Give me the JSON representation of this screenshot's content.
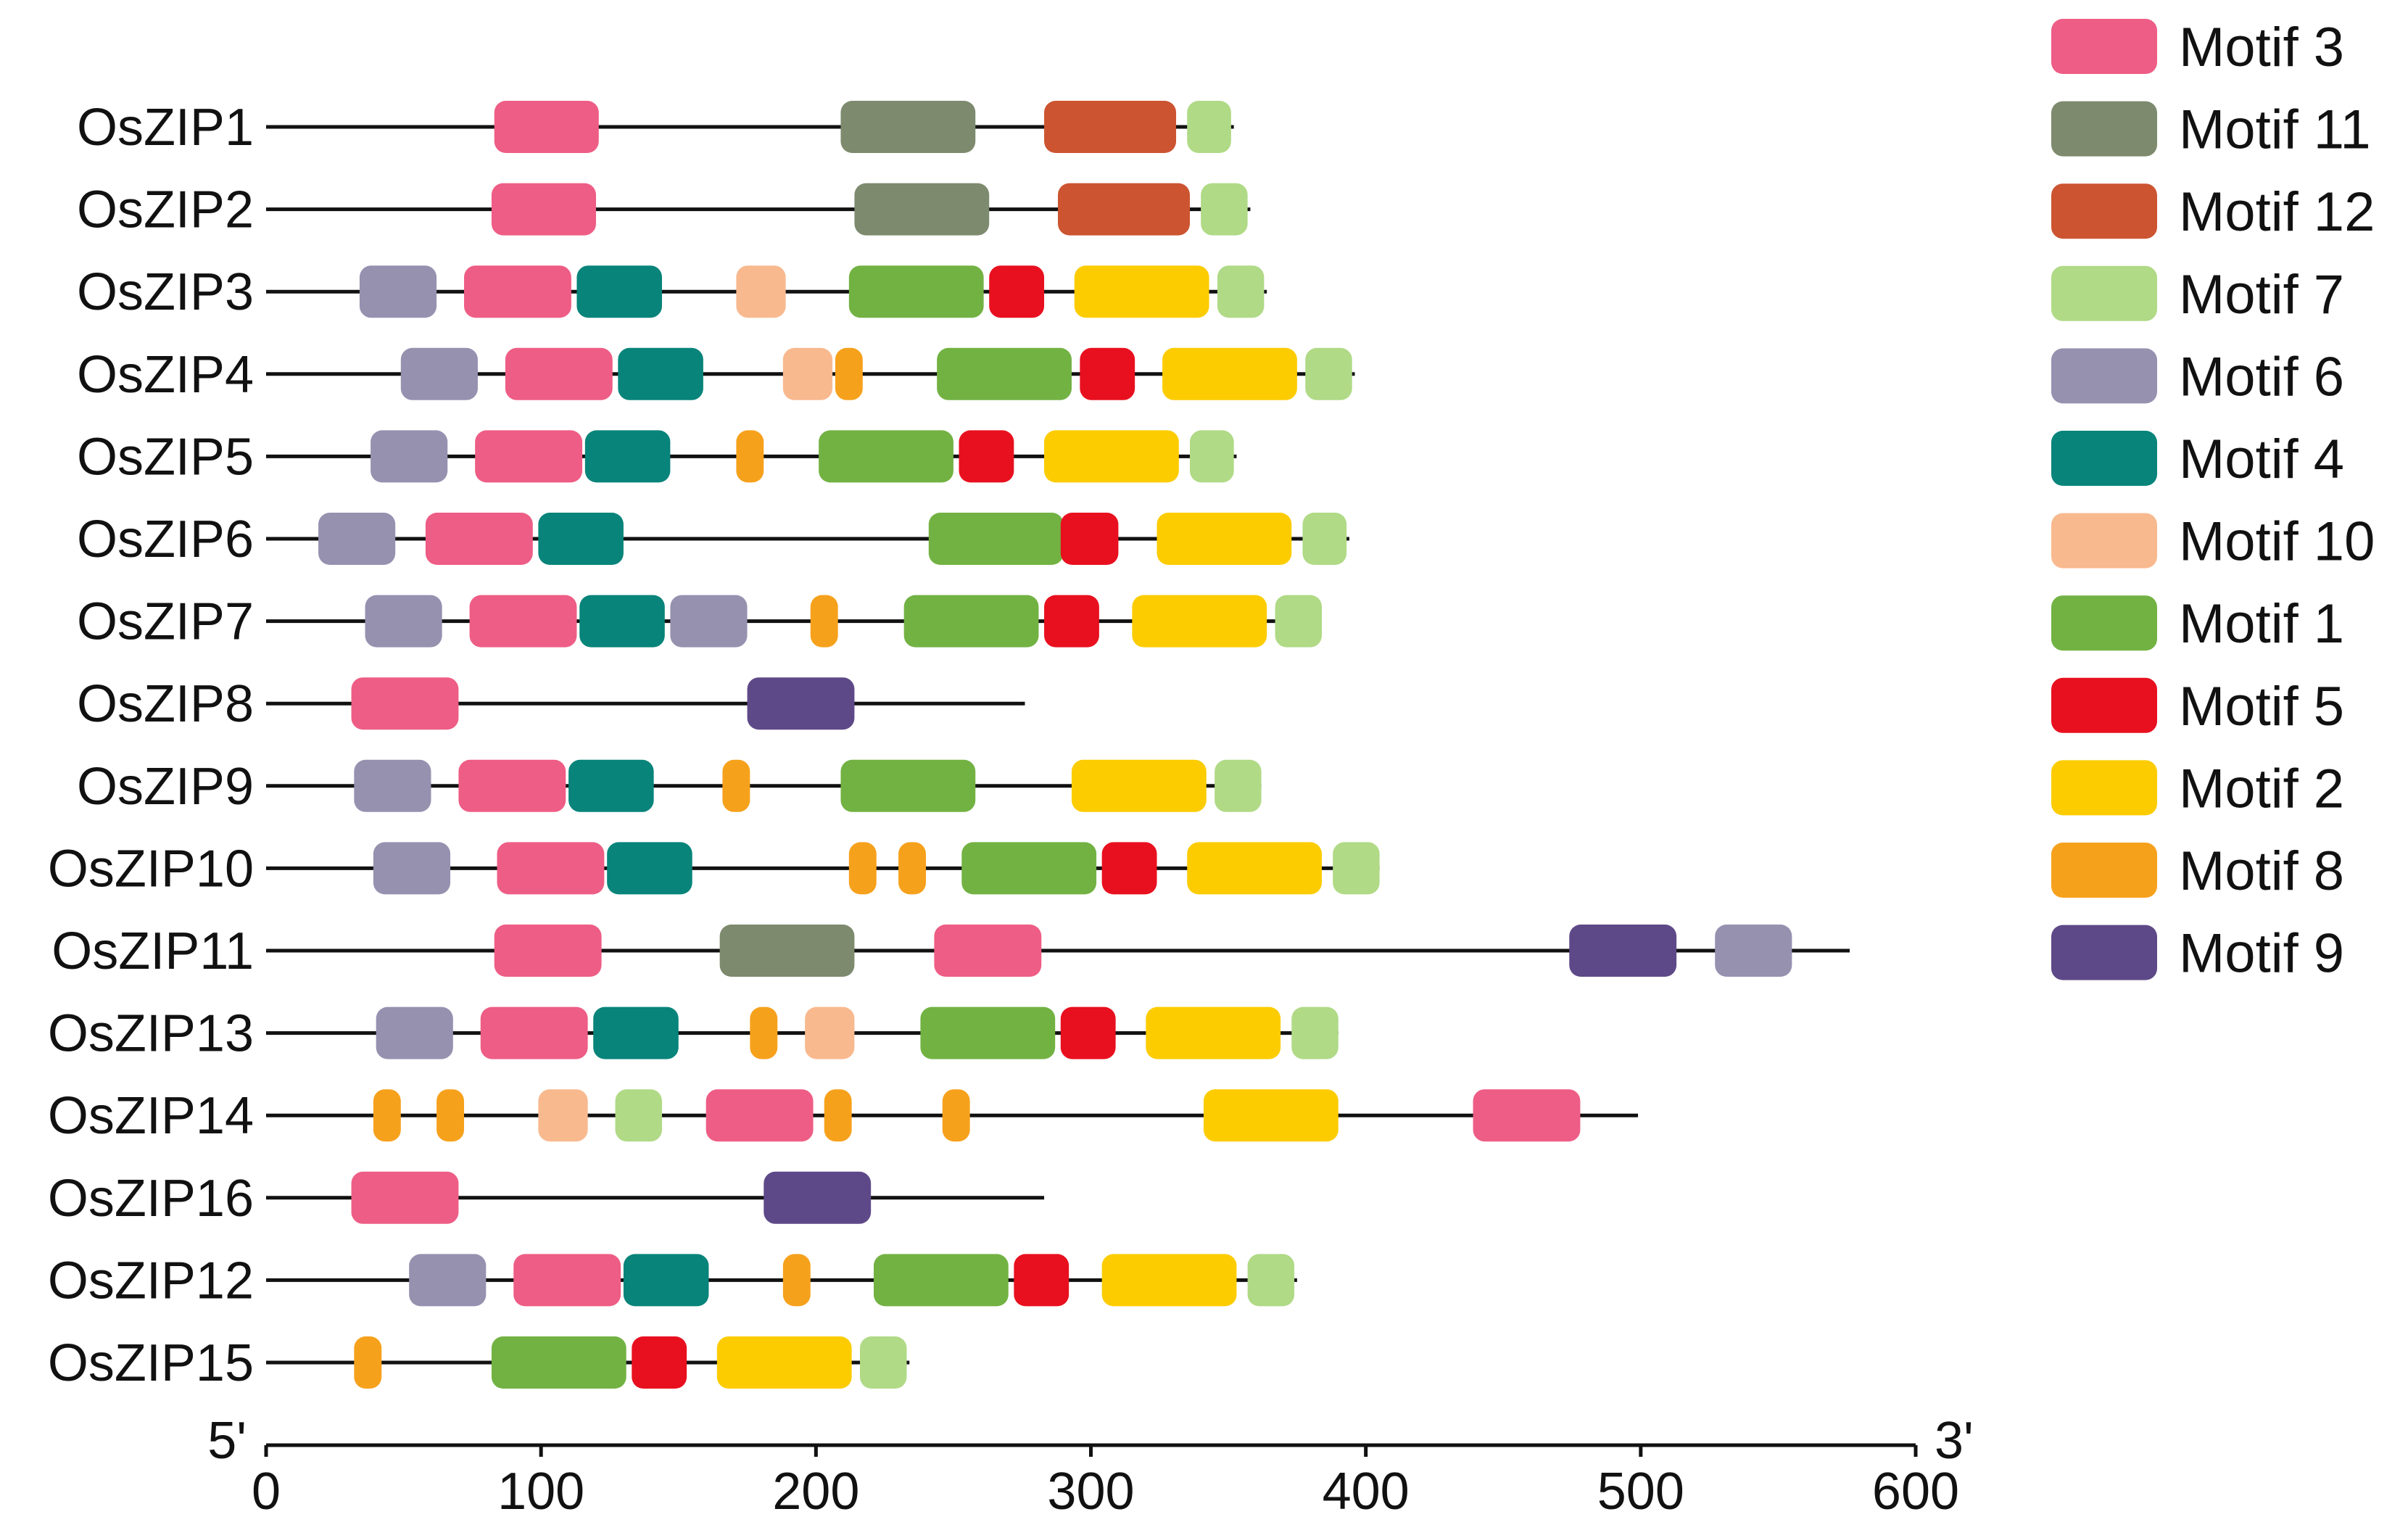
{
  "chart_data": {
    "type": "motif-diagram",
    "title": "",
    "x_axis": {
      "ticks": [
        0,
        100,
        200,
        300,
        400,
        500,
        600
      ],
      "range": [
        0,
        600
      ],
      "start_label": "5'",
      "end_label": "3'"
    },
    "motifs": [
      {
        "name": "Motif 3",
        "color": "#ee5d85"
      },
      {
        "name": "Motif 11",
        "color": "#7d8a6e"
      },
      {
        "name": "Motif 12",
        "color": "#cc5431"
      },
      {
        "name": "Motif 7",
        "color": "#b0da86"
      },
      {
        "name": "Motif 6",
        "color": "#9791b0"
      },
      {
        "name": "Motif 4",
        "color": "#08847a"
      },
      {
        "name": "Motif 10",
        "color": "#f8b98f"
      },
      {
        "name": "Motif 1",
        "color": "#72b243"
      },
      {
        "name": "Motif 5",
        "color": "#e8101f"
      },
      {
        "name": "Motif 2",
        "color": "#fccc00"
      },
      {
        "name": "Motif 8",
        "color": "#f6a11c"
      },
      {
        "name": "Motif 9",
        "color": "#5e4988"
      }
    ],
    "genes": [
      {
        "name": "OsZIP1",
        "length": 352,
        "motifs": [
          {
            "motif": "Motif 3",
            "start": 83,
            "end": 121
          },
          {
            "motif": "Motif 11",
            "start": 209,
            "end": 258
          },
          {
            "motif": "Motif 12",
            "start": 283,
            "end": 331
          },
          {
            "motif": "Motif 7",
            "start": 335,
            "end": 351
          }
        ]
      },
      {
        "name": "OsZIP2",
        "length": 358,
        "motifs": [
          {
            "motif": "Motif 3",
            "start": 82,
            "end": 120
          },
          {
            "motif": "Motif 11",
            "start": 214,
            "end": 263
          },
          {
            "motif": "Motif 12",
            "start": 288,
            "end": 336
          },
          {
            "motif": "Motif 7",
            "start": 340,
            "end": 357
          }
        ]
      },
      {
        "name": "OsZIP3",
        "length": 364,
        "motifs": [
          {
            "motif": "Motif 6",
            "start": 34,
            "end": 62
          },
          {
            "motif": "Motif 3",
            "start": 72,
            "end": 111
          },
          {
            "motif": "Motif 4",
            "start": 113,
            "end": 144
          },
          {
            "motif": "Motif 10",
            "start": 171,
            "end": 189
          },
          {
            "motif": "Motif 1",
            "start": 212,
            "end": 261
          },
          {
            "motif": "Motif 5",
            "start": 263,
            "end": 283
          },
          {
            "motif": "Motif 2",
            "start": 294,
            "end": 343
          },
          {
            "motif": "Motif 7",
            "start": 346,
            "end": 363
          }
        ]
      },
      {
        "name": "OsZIP4",
        "length": 396,
        "motifs": [
          {
            "motif": "Motif 6",
            "start": 49,
            "end": 77
          },
          {
            "motif": "Motif 3",
            "start": 87,
            "end": 126
          },
          {
            "motif": "Motif 4",
            "start": 128,
            "end": 159
          },
          {
            "motif": "Motif 10",
            "start": 188,
            "end": 206
          },
          {
            "motif": "Motif 8",
            "start": 207,
            "end": 217
          },
          {
            "motif": "Motif 1",
            "start": 244,
            "end": 293
          },
          {
            "motif": "Motif 5",
            "start": 296,
            "end": 316
          },
          {
            "motif": "Motif 2",
            "start": 326,
            "end": 375
          },
          {
            "motif": "Motif 7",
            "start": 378,
            "end": 395
          }
        ]
      },
      {
        "name": "OsZIP5",
        "length": 353,
        "motifs": [
          {
            "motif": "Motif 6",
            "start": 38,
            "end": 66
          },
          {
            "motif": "Motif 3",
            "start": 76,
            "end": 115
          },
          {
            "motif": "Motif 4",
            "start": 116,
            "end": 147
          },
          {
            "motif": "Motif 8",
            "start": 171,
            "end": 181
          },
          {
            "motif": "Motif 1",
            "start": 201,
            "end": 250
          },
          {
            "motif": "Motif 5",
            "start": 252,
            "end": 272
          },
          {
            "motif": "Motif 2",
            "start": 283,
            "end": 332
          },
          {
            "motif": "Motif 7",
            "start": 336,
            "end": 352
          }
        ]
      },
      {
        "name": "OsZIP6",
        "length": 394,
        "motifs": [
          {
            "motif": "Motif 6",
            "start": 19,
            "end": 47
          },
          {
            "motif": "Motif 3",
            "start": 58,
            "end": 97
          },
          {
            "motif": "Motif 4",
            "start": 99,
            "end": 130
          },
          {
            "motif": "Motif 1",
            "start": 241,
            "end": 290
          },
          {
            "motif": "Motif 5",
            "start": 289,
            "end": 310
          },
          {
            "motif": "Motif 2",
            "start": 324,
            "end": 373
          },
          {
            "motif": "Motif 7",
            "start": 377,
            "end": 393
          }
        ]
      },
      {
        "name": "OsZIP7",
        "length": 384,
        "motifs": [
          {
            "motif": "Motif 6",
            "start": 36,
            "end": 64
          },
          {
            "motif": "Motif 3",
            "start": 74,
            "end": 113
          },
          {
            "motif": "Motif 4",
            "start": 114,
            "end": 145
          },
          {
            "motif": "Motif 6",
            "start": 147,
            "end": 175
          },
          {
            "motif": "Motif 8",
            "start": 198,
            "end": 208
          },
          {
            "motif": "Motif 1",
            "start": 232,
            "end": 281
          },
          {
            "motif": "Motif 5",
            "start": 283,
            "end": 303
          },
          {
            "motif": "Motif 2",
            "start": 315,
            "end": 364
          },
          {
            "motif": "Motif 7",
            "start": 367,
            "end": 384
          }
        ]
      },
      {
        "name": "OsZIP8",
        "length": 276,
        "motifs": [
          {
            "motif": "Motif 3",
            "start": 31,
            "end": 70
          },
          {
            "motif": "Motif 9",
            "start": 175,
            "end": 214
          }
        ]
      },
      {
        "name": "OsZIP9",
        "length": 362,
        "motifs": [
          {
            "motif": "Motif 6",
            "start": 32,
            "end": 60
          },
          {
            "motif": "Motif 3",
            "start": 70,
            "end": 109
          },
          {
            "motif": "Motif 4",
            "start": 110,
            "end": 141
          },
          {
            "motif": "Motif 8",
            "start": 166,
            "end": 176
          },
          {
            "motif": "Motif 1",
            "start": 209,
            "end": 258
          },
          {
            "motif": "Motif 2",
            "start": 293,
            "end": 342
          },
          {
            "motif": "Motif 7",
            "start": 345,
            "end": 362
          }
        ]
      },
      {
        "name": "OsZIP10",
        "length": 405,
        "motifs": [
          {
            "motif": "Motif 6",
            "start": 39,
            "end": 67
          },
          {
            "motif": "Motif 3",
            "start": 84,
            "end": 123
          },
          {
            "motif": "Motif 4",
            "start": 124,
            "end": 155
          },
          {
            "motif": "Motif 8",
            "start": 212,
            "end": 222
          },
          {
            "motif": "Motif 8",
            "start": 230,
            "end": 240
          },
          {
            "motif": "Motif 1",
            "start": 253,
            "end": 302
          },
          {
            "motif": "Motif 5",
            "start": 304,
            "end": 324
          },
          {
            "motif": "Motif 2",
            "start": 335,
            "end": 384
          },
          {
            "motif": "Motif 7",
            "start": 388,
            "end": 405
          }
        ]
      },
      {
        "name": "OsZIP11",
        "length": 576,
        "motifs": [
          {
            "motif": "Motif 3",
            "start": 83,
            "end": 122
          },
          {
            "motif": "Motif 11",
            "start": 165,
            "end": 214
          },
          {
            "motif": "Motif 3",
            "start": 243,
            "end": 282
          },
          {
            "motif": "Motif 9",
            "start": 474,
            "end": 513
          },
          {
            "motif": "Motif 6",
            "start": 527,
            "end": 555
          }
        ]
      },
      {
        "name": "OsZIP13",
        "length": 390,
        "motifs": [
          {
            "motif": "Motif 6",
            "start": 40,
            "end": 68
          },
          {
            "motif": "Motif 3",
            "start": 78,
            "end": 117
          },
          {
            "motif": "Motif 4",
            "start": 119,
            "end": 150
          },
          {
            "motif": "Motif 8",
            "start": 176,
            "end": 186
          },
          {
            "motif": "Motif 10",
            "start": 196,
            "end": 214
          },
          {
            "motif": "Motif 1",
            "start": 238,
            "end": 287
          },
          {
            "motif": "Motif 5",
            "start": 289,
            "end": 309
          },
          {
            "motif": "Motif 2",
            "start": 320,
            "end": 369
          },
          {
            "motif": "Motif 7",
            "start": 373,
            "end": 390
          }
        ]
      },
      {
        "name": "OsZIP14",
        "length": 499,
        "motifs": [
          {
            "motif": "Motif 8",
            "start": 39,
            "end": 49
          },
          {
            "motif": "Motif 8",
            "start": 62,
            "end": 72
          },
          {
            "motif": "Motif 10",
            "start": 99,
            "end": 117
          },
          {
            "motif": "Motif 7",
            "start": 127,
            "end": 144
          },
          {
            "motif": "Motif 3",
            "start": 160,
            "end": 199
          },
          {
            "motif": "Motif 8",
            "start": 203,
            "end": 213
          },
          {
            "motif": "Motif 8",
            "start": 246,
            "end": 256
          },
          {
            "motif": "Motif 2",
            "start": 341,
            "end": 390
          },
          {
            "motif": "Motif 3",
            "start": 439,
            "end": 478
          }
        ]
      },
      {
        "name": "OsZIP16",
        "length": 283,
        "motifs": [
          {
            "motif": "Motif 3",
            "start": 31,
            "end": 70
          },
          {
            "motif": "Motif 9",
            "start": 181,
            "end": 220
          }
        ]
      },
      {
        "name": "OsZIP12",
        "length": 375,
        "motifs": [
          {
            "motif": "Motif 6",
            "start": 52,
            "end": 80
          },
          {
            "motif": "Motif 3",
            "start": 90,
            "end": 129
          },
          {
            "motif": "Motif 4",
            "start": 130,
            "end": 161
          },
          {
            "motif": "Motif 8",
            "start": 188,
            "end": 198
          },
          {
            "motif": "Motif 1",
            "start": 221,
            "end": 270
          },
          {
            "motif": "Motif 5",
            "start": 272,
            "end": 292
          },
          {
            "motif": "Motif 2",
            "start": 304,
            "end": 353
          },
          {
            "motif": "Motif 7",
            "start": 357,
            "end": 374
          }
        ]
      },
      {
        "name": "OsZIP15",
        "length": 234,
        "motifs": [
          {
            "motif": "Motif 8",
            "start": 32,
            "end": 42
          },
          {
            "motif": "Motif 1",
            "start": 82,
            "end": 131
          },
          {
            "motif": "Motif 5",
            "start": 133,
            "end": 153
          },
          {
            "motif": "Motif 2",
            "start": 164,
            "end": 213
          },
          {
            "motif": "Motif 7",
            "start": 216,
            "end": 233
          }
        ]
      }
    ]
  }
}
